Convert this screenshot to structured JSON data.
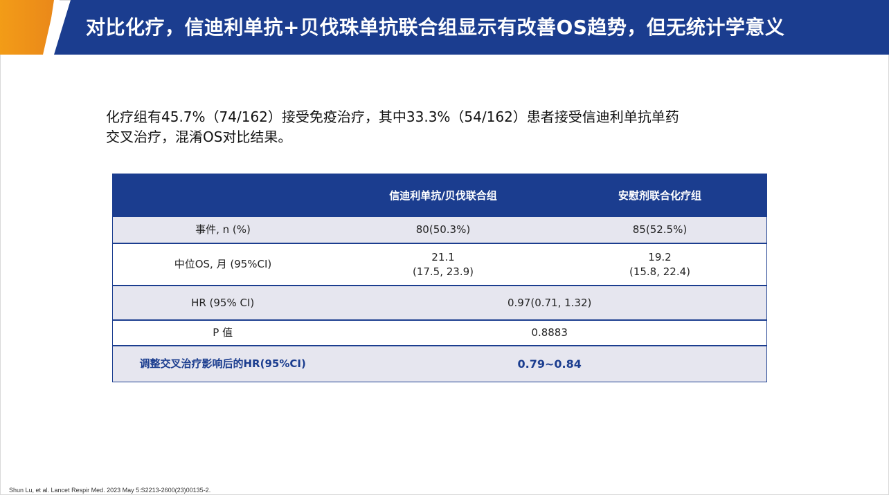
{
  "header": {
    "title": "对比化疗，信迪利单抗+贝伐珠单抗联合组显示有改善OS趋势，但无统计学意义",
    "bar_color": "#1b3d8f",
    "accent_color": "#f39c17"
  },
  "lead_text": {
    "line1": "化疗组有45.7%（74/162）接受免疫治疗，其中33.3%（54/162）患者接受信迪利单抗单药",
    "line2": "交叉治疗，混淆OS对比结果。"
  },
  "table": {
    "header": [
      "",
      "信迪利单抗/贝伐联合组",
      "安慰剂联合化疗组"
    ],
    "events": {
      "label": "事件, n (%)",
      "group1": "80(50.3%)",
      "group2": "85(52.5%)"
    },
    "median_os": {
      "label": "中位OS, 月 (95%CI)",
      "group1_value": "21.1",
      "group1_ci": "(17.5, 23.9)",
      "group2_value": "19.2",
      "group2_ci": "(15.8, 22.4)"
    },
    "hr": {
      "label": "HR (95% CI)",
      "value": "0.97(0.71, 1.32)"
    },
    "p": {
      "label": "P 值",
      "value": "0.8883"
    },
    "adjusted_hr": {
      "label": "调整交叉治疗影响后的HR(95%CI)",
      "value": "0.79~0.84"
    }
  },
  "reference": "Shun Lu, et al. Lancet Respir Med. 2023 May 5:S2213-2600(23)00135-2."
}
